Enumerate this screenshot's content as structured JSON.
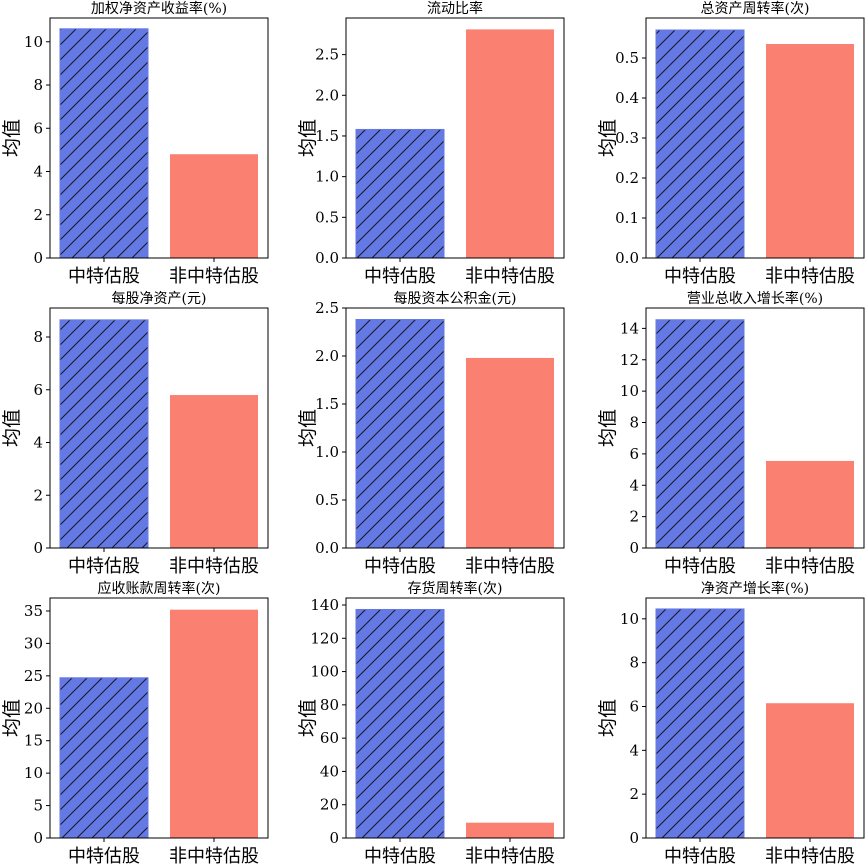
{
  "chart_data": [
    {
      "type": "bar",
      "title": "加权净资产收益率(%)",
      "ylabel": "均值",
      "categories": [
        "中特估股",
        "非中特估股"
      ],
      "values": [
        10.6,
        4.8
      ],
      "ylim": [
        0,
        11.1
      ],
      "yticks": [
        0,
        2,
        4,
        6,
        8,
        10
      ],
      "tick_labels": [
        "0",
        "2",
        "4",
        "6",
        "8",
        "10"
      ]
    },
    {
      "type": "bar",
      "title": "流动比率",
      "ylabel": "均值",
      "categories": [
        "中特估股",
        "非中特估股"
      ],
      "values": [
        1.58,
        2.81
      ],
      "ylim": [
        0,
        2.95
      ],
      "yticks": [
        0,
        0.5,
        1.0,
        1.5,
        2.0,
        2.5
      ],
      "tick_labels": [
        "0.0",
        "0.5",
        "1.0",
        "1.5",
        "2.0",
        "2.5"
      ]
    },
    {
      "type": "bar",
      "title": "总资产周转率(次)",
      "ylabel": "均值",
      "categories": [
        "中特估股",
        "非中特估股"
      ],
      "values": [
        0.57,
        0.535
      ],
      "ylim": [
        0,
        0.6
      ],
      "yticks": [
        0,
        0.1,
        0.2,
        0.3,
        0.4,
        0.5
      ],
      "tick_labels": [
        "0.0",
        "0.1",
        "0.2",
        "0.3",
        "0.4",
        "0.5"
      ]
    },
    {
      "type": "bar",
      "title": "每股净资产(元)",
      "ylabel": "均值",
      "categories": [
        "中特估股",
        "非中特估股"
      ],
      "values": [
        8.65,
        5.8
      ],
      "ylim": [
        0,
        9.1
      ],
      "yticks": [
        0,
        2,
        4,
        6,
        8
      ],
      "tick_labels": [
        "0",
        "2",
        "4",
        "6",
        "8"
      ]
    },
    {
      "type": "bar",
      "title": "每股资本公积金(元)",
      "ylabel": "均值",
      "categories": [
        "中特估股",
        "非中特估股"
      ],
      "values": [
        2.38,
        1.98
      ],
      "ylim": [
        0,
        2.5
      ],
      "yticks": [
        0,
        0.5,
        1.0,
        1.5,
        2.0,
        2.5
      ],
      "tick_labels": [
        "0.0",
        "0.5",
        "1.0",
        "1.5",
        "2.0",
        "2.5"
      ]
    },
    {
      "type": "bar",
      "title": "营业总收入增长率(%)",
      "ylabel": "均值",
      "categories": [
        "中特估股",
        "非中特估股"
      ],
      "values": [
        14.55,
        5.55
      ],
      "ylim": [
        0,
        15.3
      ],
      "yticks": [
        0,
        2,
        4,
        6,
        8,
        10,
        12,
        14
      ],
      "tick_labels": [
        "0",
        "2",
        "4",
        "6",
        "8",
        "10",
        "12",
        "14"
      ]
    },
    {
      "type": "bar",
      "title": "应收账款周转率(次)",
      "ylabel": "均值",
      "categories": [
        "中特估股",
        "非中特估股"
      ],
      "values": [
        24.7,
        35.2
      ],
      "ylim": [
        0,
        37
      ],
      "yticks": [
        0,
        5,
        10,
        15,
        20,
        25,
        30,
        35
      ],
      "tick_labels": [
        "0",
        "5",
        "10",
        "15",
        "20",
        "25",
        "30",
        "35"
      ]
    },
    {
      "type": "bar",
      "title": "存货周转率(次)",
      "ylabel": "均值",
      "categories": [
        "中特估股",
        "非中特估股"
      ],
      "values": [
        137.3,
        9.2
      ],
      "ylim": [
        0,
        144.2
      ],
      "yticks": [
        0,
        20,
        40,
        60,
        80,
        100,
        120,
        140
      ],
      "tick_labels": [
        "0",
        "20",
        "40",
        "60",
        "80",
        "100",
        "120",
        "140"
      ]
    },
    {
      "type": "bar",
      "title": "净资产增长率(%)",
      "ylabel": "均值",
      "categories": [
        "中特估股",
        "非中特估股"
      ],
      "values": [
        10.45,
        6.15
      ],
      "ylim": [
        0,
        10.95
      ],
      "yticks": [
        0,
        2,
        4,
        6,
        8,
        10
      ],
      "tick_labels": [
        "0",
        "2",
        "4",
        "6",
        "8",
        "10"
      ]
    }
  ],
  "colors": {
    "series_a": "#6479e3",
    "series_b": "#fa8072",
    "hatch": "#1a1a2e",
    "axis": "#000000"
  }
}
